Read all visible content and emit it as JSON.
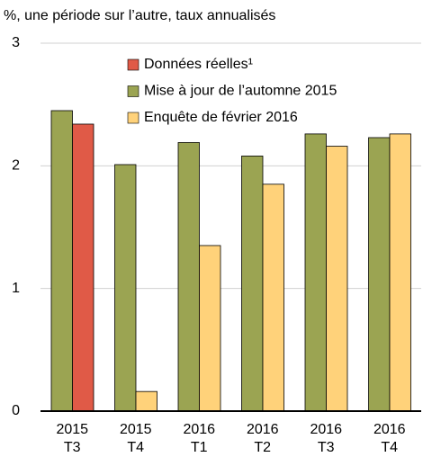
{
  "chart_data": {
    "type": "bar",
    "title": "%, une période sur l’autre, taux annualisés",
    "categories": [
      [
        "2015",
        "T3"
      ],
      [
        "2015",
        "T4"
      ],
      [
        "2016",
        "T1"
      ],
      [
        "2016",
        "T2"
      ],
      [
        "2016",
        "T3"
      ],
      [
        "2016",
        "T4"
      ]
    ],
    "series": [
      {
        "name": "Données réelles¹",
        "color": "#e05a47",
        "values": [
          2.34,
          null,
          null,
          null,
          null,
          null
        ]
      },
      {
        "name": "Mise à jour de l’automne 2015",
        "color": "#9ba452",
        "values": [
          2.45,
          2.01,
          2.19,
          2.08,
          2.26,
          2.23
        ]
      },
      {
        "name": "Enquête de février 2016",
        "color": "#ffd27a",
        "values": [
          null,
          0.16,
          1.35,
          1.85,
          2.16,
          2.26
        ]
      }
    ],
    "ylim": [
      0,
      3
    ],
    "yticks": [
      0,
      1,
      2,
      3
    ],
    "grid": true,
    "legend": "top"
  }
}
